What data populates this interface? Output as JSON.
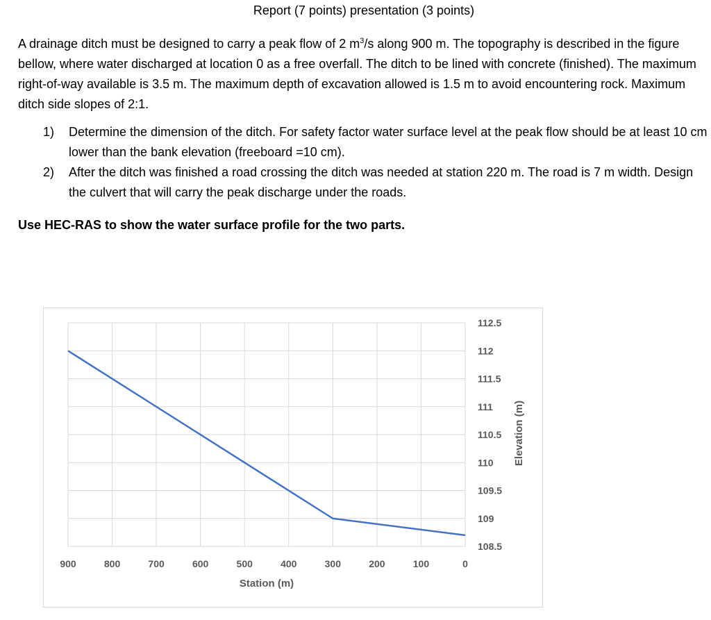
{
  "title": "Report (7 points) presentation (3 points)",
  "intro": {
    "before_sup": "A drainage ditch must be designed to carry a peak flow of 2 m",
    "sup": "3",
    "after_sup": "/s along 900 m. The topography is described in the figure bellow, where water discharged at location 0 as a free overfall.   The ditch to be lined with concrete (finished). The maximum right-of-way available is 3.5 m. The maximum depth of excavation allowed is 1.5 m to avoid encountering rock. Maximum ditch side slopes of 2:1."
  },
  "questions": [
    {
      "number": "1)",
      "text": "Determine the dimension of the ditch.  For safety factor water surface level at the peak flow should be at least 10 cm lower than the bank elevation (freeboard =10 cm)."
    },
    {
      "number": "2)",
      "text": "After the ditch was finished a road crossing the ditch was needed at station 220 m.  The road is 7 m width. Design the culvert that will carry the peak discharge under the roads."
    }
  ],
  "instruction": "Use HEC-RAS to show the water surface profile for the two parts.",
  "chart_data": {
    "type": "line",
    "title": "",
    "xlabel": "Station (m)",
    "ylabel": "Elevation (m)",
    "xlim": [
      900,
      0
    ],
    "ylim": [
      108.5,
      112.5
    ],
    "x_reversed": true,
    "y_axis_position": "right",
    "grid": true,
    "x_ticks": [
      900,
      800,
      700,
      600,
      500,
      400,
      300,
      200,
      100,
      0
    ],
    "y_ticks": [
      108.5,
      109,
      109.5,
      110,
      110.5,
      111,
      111.5,
      112,
      112.5
    ],
    "series": [
      {
        "color": "#4472c4",
        "x": [
          900,
          300,
          0
        ],
        "y": [
          112,
          109,
          108.7
        ]
      }
    ]
  }
}
